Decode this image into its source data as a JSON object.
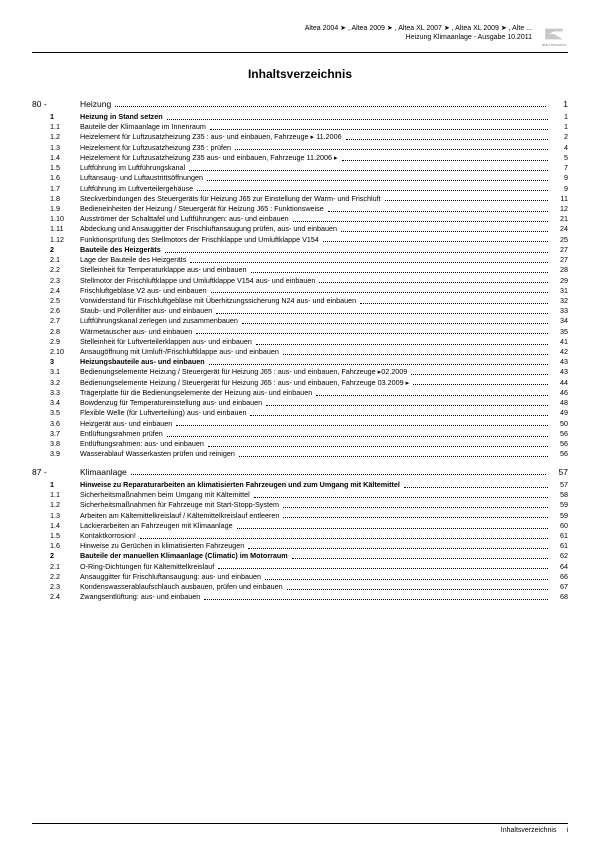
{
  "header": {
    "line1": "Altea 2004 ➤ , Altea 2009 ➤ , Altea XL 2007 ➤ , Altea XL 2009 ➤ , Alte ...",
    "line2": "Heizung Klimaanlage - Ausgabe 10.2011",
    "logo_label": "SEAT"
  },
  "title": "Inhaltsverzeichnis",
  "sections": [
    {
      "num": "80 -",
      "name": "Heizung",
      "page": "1",
      "items": [
        {
          "n": "1",
          "t": "Heizung in Stand setzen",
          "p": "1",
          "lvl": 1
        },
        {
          "n": "1.1",
          "t": "Bauteile der Klimaanlage im Innenraum",
          "p": "1",
          "lvl": 2
        },
        {
          "n": "1.2",
          "t": "Heizelement für Luftzusatzheizung Z35 : aus- und einbauen, Fahrzeuge ▸ 11.2006",
          "p": "2",
          "lvl": 2
        },
        {
          "n": "1.3",
          "t": "Heizelement für Luftzusatzheizung Z35 : prüfen",
          "p": "4",
          "lvl": 2
        },
        {
          "n": "1.4",
          "t": "Heizelement für Luftzusatzheizung Z35 aus- und einbauen, Fahrzeuge 11.2006 ▸",
          "p": "5",
          "lvl": 2
        },
        {
          "n": "1.5",
          "t": "Luftführung im Luftführungskanal",
          "p": "7",
          "lvl": 2
        },
        {
          "n": "1.6",
          "t": "Luftansaug- und Luftaustrittsöffnungen",
          "p": "9",
          "lvl": 2
        },
        {
          "n": "1.7",
          "t": "Luftführung im Luftverteilergehäuse",
          "p": "9",
          "lvl": 2
        },
        {
          "n": "1.8",
          "t": "Steckverbindungen des Steuergeräts für Heizung J65 zur Einstellung der Warm- und Frischluft",
          "p": "11",
          "lvl": 2,
          "ml": true
        },
        {
          "n": "1.9",
          "t": "Bedieneinheiten der Heizung / Steuergerät für Heizung J65 : Funktionsweise",
          "p": "12",
          "lvl": 2
        },
        {
          "n": "1.10",
          "t": "Ausströmer der Schalttafel und Luftführungen: aus- und einbauen",
          "p": "21",
          "lvl": 2
        },
        {
          "n": "1.11",
          "t": "Abdeckung und Ansauggitter der Frischluftansaugung prüfen, aus- und einbauen",
          "p": "24",
          "lvl": 2
        },
        {
          "n": "1.12",
          "t": "Funktionsprüfung des Stellmotors der Frischklappe und Umluftklappe V154",
          "p": "25",
          "lvl": 2
        },
        {
          "n": "2",
          "t": "Bauteile des Heizgeräts",
          "p": "27",
          "lvl": 1
        },
        {
          "n": "2.1",
          "t": "Lage der Bauteile des Heizgeräts",
          "p": "27",
          "lvl": 2
        },
        {
          "n": "2.2",
          "t": "Stelleinheit für Temperaturklappe aus- und einbauen",
          "p": "28",
          "lvl": 2
        },
        {
          "n": "2.3",
          "t": "Stellmotor der Frischluftklappe und Umluftklappe V154 aus- und einbauen",
          "p": "29",
          "lvl": 2
        },
        {
          "n": "2.4",
          "t": "Frischluftgebläse V2 aus- und einbauen",
          "p": "31",
          "lvl": 2
        },
        {
          "n": "2.5",
          "t": "Vorwiderstand für Frischluftgebläse mit Überhitzungssicherung N24 aus- und einbauen",
          "p": "32",
          "lvl": 2
        },
        {
          "n": "2.6",
          "t": "Staub- und Pollenfilter aus- und einbauen",
          "p": "33",
          "lvl": 2
        },
        {
          "n": "2.7",
          "t": "Luftführungskanal zerlegen und zusammenbauen",
          "p": "34",
          "lvl": 2
        },
        {
          "n": "2.8",
          "t": "Wärmetauscher aus- und einbauen",
          "p": "35",
          "lvl": 2
        },
        {
          "n": "2.9",
          "t": "Stelleinheit für Luftverteilerklappen aus- und einbauen",
          "p": "41",
          "lvl": 2
        },
        {
          "n": "2.10",
          "t": "Ansaugöffnung mit Umluft-/Frischluftklappe aus- und einbauen",
          "p": "42",
          "lvl": 2
        },
        {
          "n": "3",
          "t": "Heizungsbauteile aus- und einbauen",
          "p": "43",
          "lvl": 1
        },
        {
          "n": "3.1",
          "t": "Bedienungselemente Heizung / Steuergerät für Heizung J65 : aus- und einbauen, Fahrzeuge ▸02.2009",
          "p": "43",
          "lvl": 2,
          "ml": true
        },
        {
          "n": "3.2",
          "t": "Bedienungselemente Heizung / Steuergerät für Heizung J65 : aus- und einbauen, Fahrzeuge 03.2009 ▸",
          "p": "44",
          "lvl": 2,
          "ml": true
        },
        {
          "n": "3.3",
          "t": "Trägerplatte für die Bedienungselemente der Heizung aus- und einbauen",
          "p": "46",
          "lvl": 2
        },
        {
          "n": "3.4",
          "t": "Bowdenzug für Temperatureinstellung aus- und einbauen",
          "p": "48",
          "lvl": 2
        },
        {
          "n": "3.5",
          "t": "Flexible Welle (für Luftverteilung) aus- und einbauen",
          "p": "49",
          "lvl": 2
        },
        {
          "n": "3.6",
          "t": "Heizgerät aus- und einbauen",
          "p": "50",
          "lvl": 2
        },
        {
          "n": "3.7",
          "t": "Entlüftungsrahmen prüfen",
          "p": "56",
          "lvl": 2
        },
        {
          "n": "3.8",
          "t": "Entlüftungsrahmen: aus- und einbauen",
          "p": "56",
          "lvl": 2
        },
        {
          "n": "3.9",
          "t": "Wasserablauf Wasserkasten prüfen und reinigen",
          "p": "56",
          "lvl": 2
        }
      ]
    },
    {
      "num": "87 -",
      "name": "Klimaanlage",
      "page": "57",
      "items": [
        {
          "n": "1",
          "t": "Hinweise zu Reparaturarbeiten an klimatisierten Fahrzeugen und zum Umgang mit Kältemittel",
          "p": "57",
          "lvl": 1,
          "ml": true
        },
        {
          "n": "1.1",
          "t": "Sicherheitsmaßnahmen beim Umgang mit Kältemittel",
          "p": "58",
          "lvl": 2
        },
        {
          "n": "1.2",
          "t": "Sicherheitsmaßnahmen für Fahrzeuge mit Start-Stopp-System",
          "p": "59",
          "lvl": 2
        },
        {
          "n": "1.3",
          "t": "Arbeiten am Kältemittelkreislauf / Kältemittelkreislauf entleeren",
          "p": "59",
          "lvl": 2
        },
        {
          "n": "1.4",
          "t": "Lackierarbeiten an Fahrzeugen mit Klimaanlage",
          "p": "60",
          "lvl": 2
        },
        {
          "n": "1.5",
          "t": "Kontaktkorrosion!",
          "p": "61",
          "lvl": 2
        },
        {
          "n": "1.6",
          "t": "Hinweise zu Gerüchen in klimatisierten Fahrzeugen",
          "p": "61",
          "lvl": 2
        },
        {
          "n": "2",
          "t": "Bauteile der manuellen Klimaanlage (Climatic) im Motorraum",
          "p": "62",
          "lvl": 1
        },
        {
          "n": "2.1",
          "t": "O-Ring-Dichtungen für Kältemittelkreislauf",
          "p": "64",
          "lvl": 2
        },
        {
          "n": "2.2",
          "t": "Ansauggitter für Frischluftansaugung: aus- und einbauen",
          "p": "66",
          "lvl": 2
        },
        {
          "n": "2.3",
          "t": "Kondenswasserablaufschlauch ausbauen, prüfen und einbauen",
          "p": "67",
          "lvl": 2
        },
        {
          "n": "2.4",
          "t": "Zwangsentlüftung: aus- und einbauen",
          "p": "68",
          "lvl": 2
        }
      ]
    }
  ],
  "footer": {
    "text": "Inhaltsverzeichnis",
    "page": "i"
  }
}
